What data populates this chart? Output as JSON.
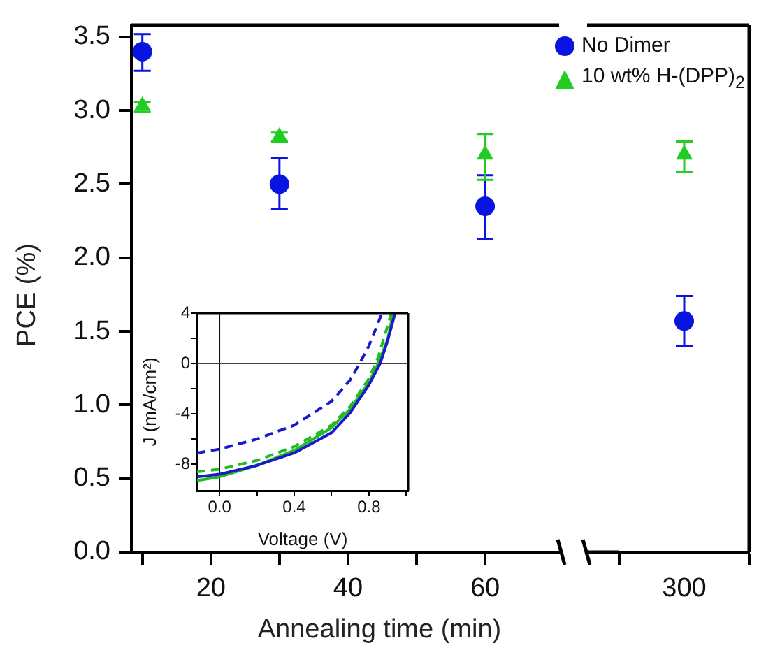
{
  "chart_data": [
    {
      "type": "scatter",
      "legend": "top right",
      "ylabel": "PCE (%)",
      "xlabel": "Annealing time (min)",
      "xlim": [
        8.4,
        70.8
      ],
      "xticks": [
        {
          "value": 10,
          "label": null
        },
        20,
        {
          "value": 30,
          "label": null
        },
        40,
        {
          "value": 50,
          "label": null
        },
        60
      ],
      "ylim": [
        0,
        3.58
      ],
      "yticks": [
        {
          "value": 0,
          "label": "0.0"
        },
        0.5,
        {
          "value": 1,
          "label": "1.0"
        },
        1.5,
        {
          "value": 2,
          "label": "2.0"
        },
        2.5,
        {
          "value": 3,
          "label": "3.0"
        },
        3.5
      ],
      "series": [
        {
          "name": "No Dimer",
          "color": "#0a14e0",
          "marker": "circle",
          "x": [
            10,
            30,
            60
          ],
          "values": [
            3.4,
            2.5,
            2.35
          ],
          "errors": [
            [
              3.27,
              3.52
            ],
            [
              2.33,
              2.68
            ],
            [
              2.13,
              2.56
            ]
          ]
        },
        {
          "name": "10 wt% H-(DPP)$_{2}$",
          "color": "#22cc22",
          "marker": "triangle",
          "x": [
            10,
            30,
            60
          ],
          "values": [
            3.03,
            2.82,
            2.7
          ],
          "errors": [
            [
              2.99,
              3.06
            ],
            [
              2.79,
              2.85
            ],
            [
              2.53,
              2.84
            ]
          ]
        }
      ]
    },
    {
      "type": "scatter",
      "tick_labels": "x",
      "categories": [
        "300"
      ],
      "ylim": [
        0,
        3.58
      ],
      "series": [
        {
          "color": "#0a14e0",
          "marker": "circle",
          "values": [
            1.57
          ],
          "errors": [
            [
              1.4,
              1.74
            ]
          ]
        },
        {
          "color": "#22cc22",
          "marker": "triangle",
          "values": [
            2.7
          ],
          "errors": [
            [
              2.58,
              2.79
            ]
          ]
        }
      ]
    },
    {
      "type": "line",
      "xlabel": "Voltage (V)",
      "ylabel": "J (mA/cm²)",
      "xlim": [
        -0.12,
        1.01
      ],
      "xticks": [
        {
          "value": 0,
          "label": "0.0"
        },
        {
          "value": 0.2,
          "label": null
        },
        0.4,
        {
          "value": 0.6,
          "label": null
        },
        0.8,
        {
          "value": 1,
          "label": null
        }
      ],
      "ylim": [
        -10.1,
        4
      ],
      "yticks": [
        -8,
        {
          "value": -6,
          "label": null
        },
        -4,
        {
          "value": -2,
          "label": null
        },
        0,
        {
          "value": 2,
          "label": null
        },
        4
      ],
      "ref_lines": [
        {
          "axis": "x",
          "value": 0,
          "color": "#111111"
        },
        {
          "axis": "y",
          "value": 0,
          "color": "#444444"
        }
      ],
      "series": [
        {
          "color": "#1a1acc",
          "line_style": "dashed",
          "x": [
            -0.12,
            0,
            0.2,
            0.4,
            0.6,
            0.7,
            0.75,
            0.8,
            0.87
          ],
          "values": [
            -7.1,
            -6.8,
            -6.0,
            -4.9,
            -3.0,
            -1.3,
            0,
            1.4,
            4
          ]
        },
        {
          "color": "#1a1acc",
          "line_style": "solid",
          "x": [
            -0.12,
            0,
            0.2,
            0.4,
            0.6,
            0.7,
            0.8,
            0.86,
            0.9,
            0.94
          ],
          "values": [
            -9.0,
            -8.8,
            -8.1,
            -7.1,
            -5.5,
            -3.9,
            -1.7,
            0,
            1.8,
            4
          ]
        },
        {
          "color": "#22bb22",
          "line_style": "solid",
          "x": [
            -0.12,
            0,
            0.2,
            0.4,
            0.6,
            0.7,
            0.8,
            0.85,
            0.9,
            0.93
          ],
          "values": [
            -9.3,
            -9.0,
            -8.1,
            -6.9,
            -5.1,
            -3.6,
            -1.5,
            0,
            1.9,
            4
          ]
        },
        {
          "color": "#22bb22",
          "line_style": "dashed",
          "x": [
            -0.12,
            0,
            0.2,
            0.4,
            0.6,
            0.7,
            0.8,
            0.85,
            0.92
          ],
          "values": [
            -8.6,
            -8.4,
            -7.7,
            -6.6,
            -4.9,
            -3.4,
            -1.2,
            0.5,
            4
          ]
        }
      ]
    }
  ]
}
